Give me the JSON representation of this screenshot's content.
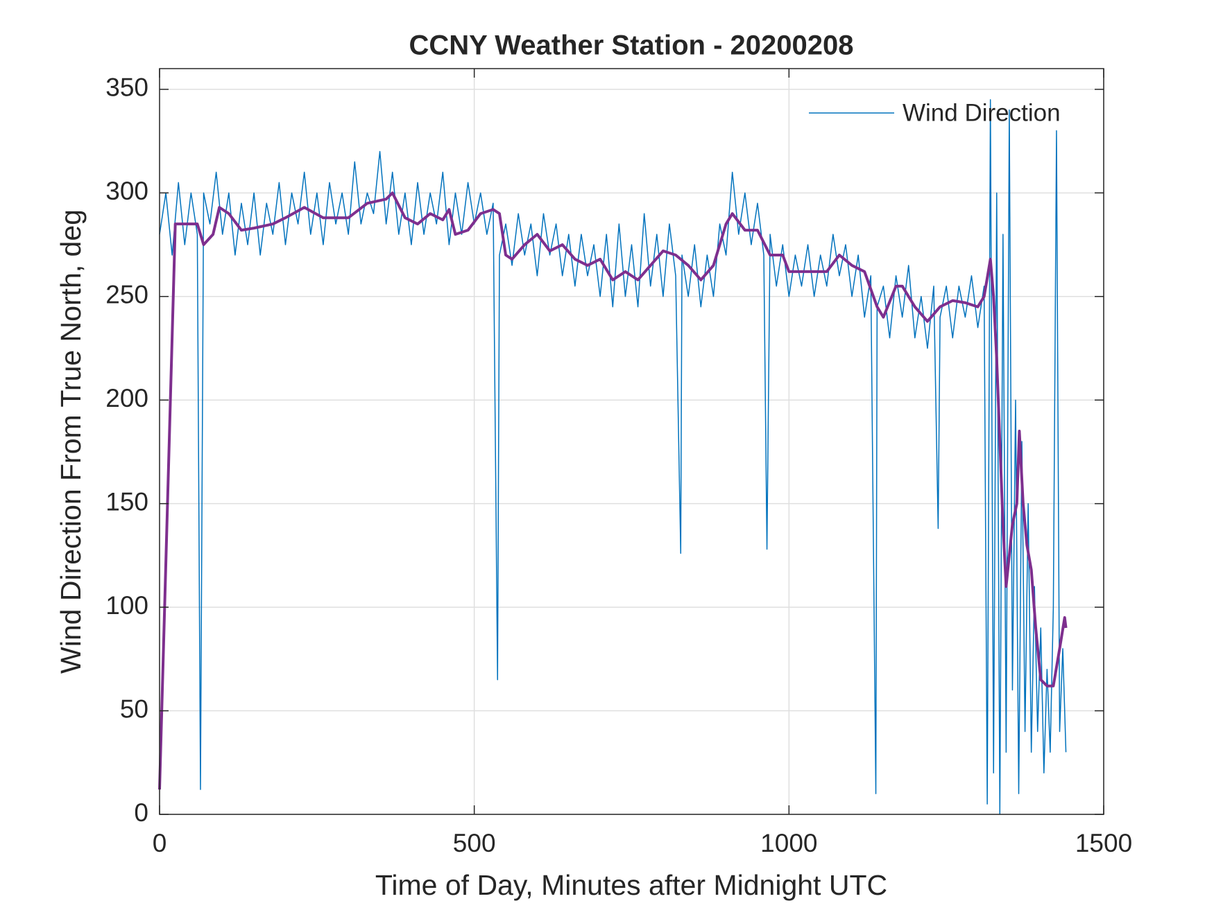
{
  "chart_data": {
    "type": "line",
    "title": "CCNY Weather Station - 20200208",
    "xlabel": "Time of Day, Minutes after Midnight UTC",
    "ylabel": "Wind Direction From True North, deg",
    "xlim": [
      0,
      1500
    ],
    "xticks": [
      0,
      500,
      1000,
      1500
    ],
    "ylim": [
      0,
      360
    ],
    "yticks": [
      0,
      50,
      100,
      150,
      200,
      250,
      300,
      350
    ],
    "grid": true,
    "legend": "northeast",
    "series": [
      {
        "name": "Wind Direction",
        "color": "#0072bd",
        "width": 1.5,
        "x": [
          0,
          10,
          20,
          30,
          40,
          50,
          60,
          65,
          70,
          80,
          90,
          100,
          110,
          120,
          130,
          140,
          150,
          160,
          170,
          180,
          190,
          200,
          210,
          220,
          230,
          240,
          250,
          260,
          270,
          280,
          290,
          300,
          310,
          320,
          330,
          340,
          350,
          360,
          370,
          380,
          390,
          400,
          410,
          420,
          430,
          440,
          450,
          460,
          470,
          480,
          490,
          500,
          510,
          520,
          530,
          537,
          540,
          550,
          560,
          570,
          580,
          590,
          600,
          610,
          620,
          630,
          640,
          650,
          660,
          670,
          680,
          690,
          700,
          710,
          720,
          730,
          740,
          750,
          760,
          770,
          780,
          790,
          800,
          810,
          820,
          828,
          830,
          840,
          850,
          860,
          870,
          880,
          890,
          900,
          910,
          920,
          930,
          940,
          950,
          960,
          965,
          970,
          980,
          990,
          1000,
          1010,
          1020,
          1030,
          1040,
          1050,
          1060,
          1070,
          1080,
          1090,
          1100,
          1110,
          1120,
          1130,
          1138,
          1140,
          1150,
          1160,
          1170,
          1180,
          1190,
          1200,
          1210,
          1220,
          1230,
          1237,
          1240,
          1250,
          1260,
          1270,
          1280,
          1290,
          1300,
          1310,
          1315,
          1320,
          1325,
          1330,
          1335,
          1340,
          1345,
          1350,
          1355,
          1360,
          1365,
          1370,
          1375,
          1380,
          1385,
          1390,
          1395,
          1400,
          1405,
          1410,
          1415,
          1420,
          1425,
          1430,
          1435,
          1440
        ],
        "values": [
          280,
          300,
          270,
          305,
          275,
          300,
          280,
          12,
          300,
          285,
          310,
          280,
          300,
          270,
          295,
          275,
          300,
          270,
          295,
          280,
          305,
          275,
          300,
          285,
          310,
          280,
          300,
          275,
          305,
          285,
          300,
          280,
          315,
          285,
          300,
          290,
          320,
          285,
          310,
          280,
          300,
          275,
          305,
          280,
          300,
          285,
          310,
          275,
          300,
          280,
          305,
          285,
          300,
          280,
          295,
          65,
          270,
          285,
          265,
          290,
          270,
          285,
          260,
          290,
          270,
          285,
          260,
          280,
          255,
          280,
          260,
          275,
          250,
          280,
          245,
          285,
          250,
          275,
          245,
          290,
          255,
          280,
          250,
          285,
          260,
          126,
          270,
          250,
          275,
          245,
          270,
          250,
          285,
          270,
          310,
          280,
          300,
          275,
          295,
          270,
          128,
          280,
          255,
          275,
          250,
          270,
          255,
          275,
          250,
          270,
          255,
          280,
          260,
          275,
          250,
          270,
          240,
          260,
          10,
          245,
          255,
          230,
          260,
          240,
          265,
          230,
          250,
          225,
          255,
          138,
          240,
          255,
          230,
          255,
          240,
          260,
          235,
          255,
          5,
          345,
          20,
          300,
          0,
          280,
          30,
          340,
          60,
          200,
          10,
          180,
          40,
          150,
          30,
          110,
          40,
          90,
          20,
          70,
          30,
          100,
          330,
          40,
          80,
          30
        ]
      },
      {
        "color": "#7e2f8e",
        "width": 4,
        "x": [
          0,
          25,
          40,
          60,
          70,
          85,
          95,
          110,
          130,
          150,
          180,
          200,
          230,
          260,
          300,
          330,
          360,
          370,
          390,
          410,
          430,
          450,
          460,
          470,
          490,
          510,
          530,
          540,
          550,
          560,
          580,
          600,
          620,
          640,
          660,
          680,
          700,
          720,
          740,
          760,
          780,
          800,
          820,
          840,
          860,
          880,
          900,
          910,
          930,
          950,
          970,
          990,
          1000,
          1020,
          1040,
          1060,
          1080,
          1100,
          1120,
          1140,
          1150,
          1170,
          1180,
          1200,
          1220,
          1240,
          1260,
          1280,
          1300,
          1310,
          1320,
          1325,
          1330,
          1335,
          1340,
          1345,
          1355,
          1362,
          1366,
          1372,
          1378,
          1385,
          1392,
          1400,
          1410,
          1420,
          1430,
          1438,
          1440
        ],
        "values": [
          12,
          285,
          285,
          285,
          275,
          280,
          293,
          290,
          282,
          283,
          285,
          288,
          293,
          288,
          288,
          295,
          297,
          300,
          288,
          285,
          290,
          287,
          292,
          280,
          282,
          290,
          292,
          290,
          270,
          268,
          275,
          280,
          272,
          275,
          268,
          265,
          268,
          258,
          262,
          258,
          265,
          272,
          270,
          265,
          258,
          265,
          285,
          290,
          282,
          282,
          270,
          270,
          262,
          262,
          262,
          262,
          270,
          265,
          262,
          245,
          240,
          255,
          255,
          245,
          238,
          245,
          248,
          247,
          245,
          250,
          268,
          250,
          220,
          180,
          140,
          110,
          140,
          150,
          185,
          150,
          130,
          118,
          90,
          65,
          62,
          62,
          80,
          95,
          90
        ]
      }
    ]
  }
}
